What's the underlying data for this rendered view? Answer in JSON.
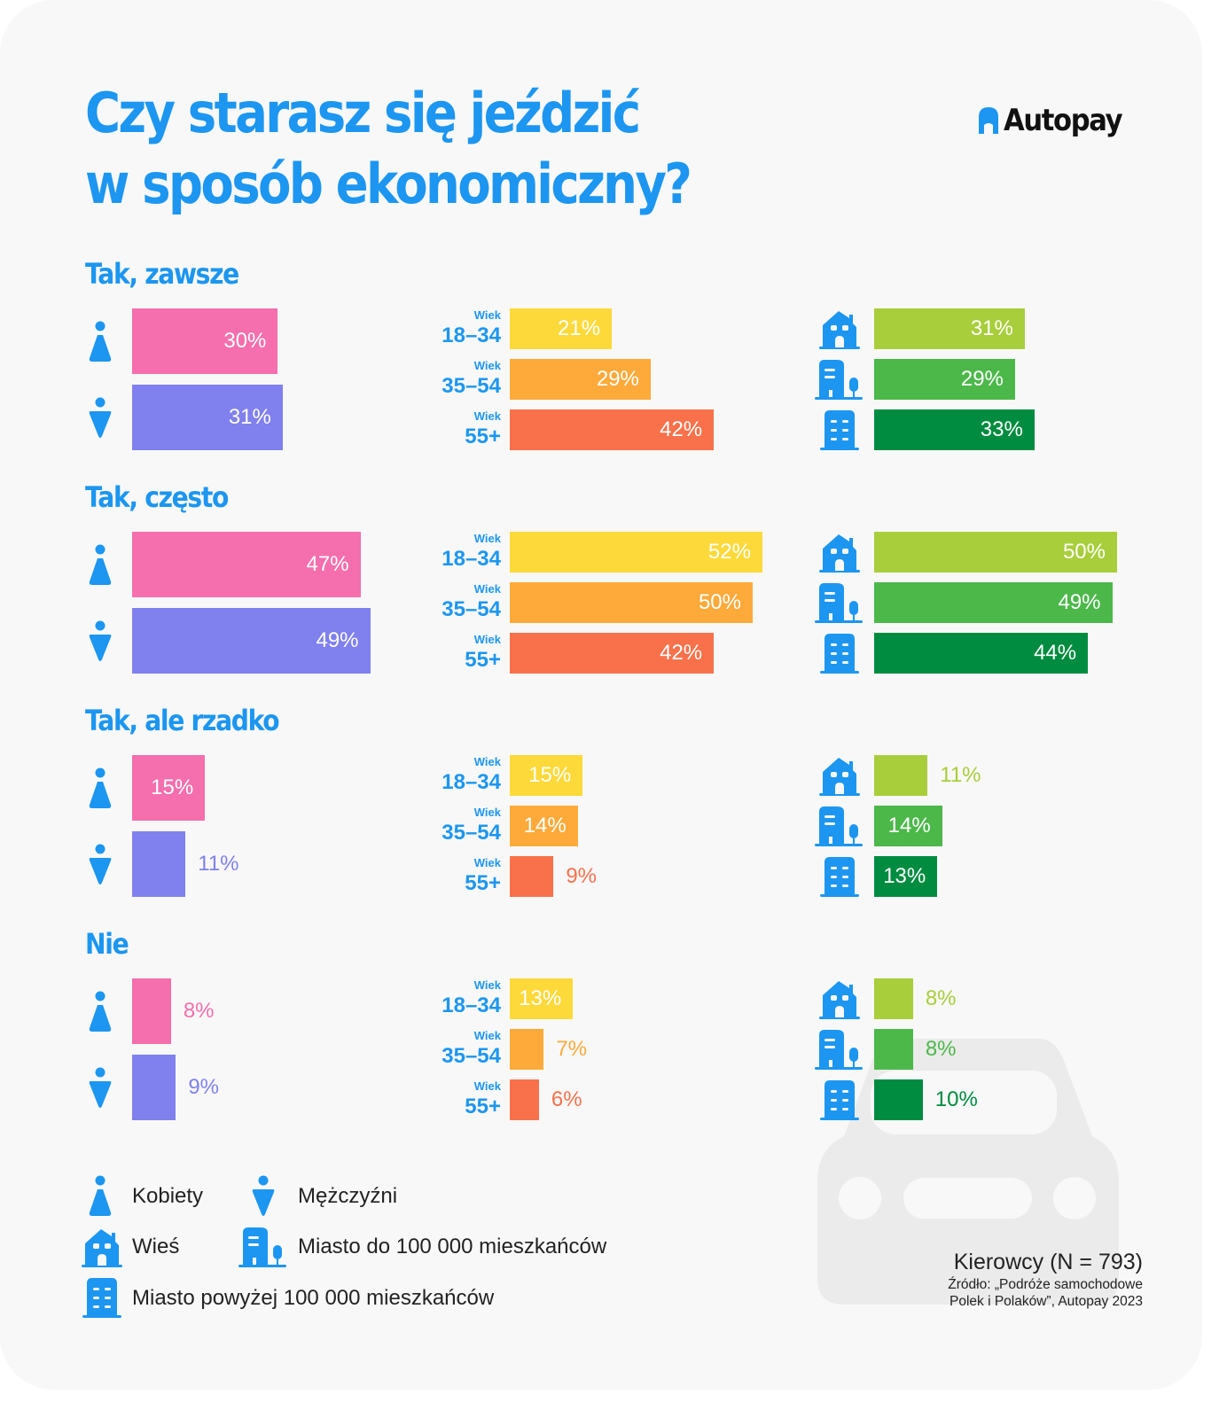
{
  "title_line1": "Czy starasz się jeździć",
  "title_line2": "w sposób ekonomiczny?",
  "logo": "Autopay",
  "age_prefix": "Wiek",
  "colors": {
    "accent": "#1c96f0",
    "women": "#f56ead",
    "men": "#8080ee",
    "age_18_34": "#fdd93a",
    "age_35_54": "#fdaa3a",
    "age_55_plus": "#f8714a",
    "village": "#a8ce3b",
    "town": "#4cb84a",
    "city": "#008c40"
  },
  "chart_data": {
    "type": "bar",
    "orientation": "horizontal",
    "unit": "%",
    "groups": [
      "Kobiety",
      "Mężczyźni"
    ],
    "age_groups": [
      "18–34",
      "35–54",
      "55+"
    ],
    "locations": [
      "Wieś",
      "Miasto do 100 000 mieszkańców",
      "Miasto powyżej 100 000 mieszkańców"
    ],
    "sections": [
      {
        "title": "Tak, zawsze",
        "gender": [
          30,
          31
        ],
        "age": [
          21,
          29,
          42
        ],
        "location": [
          31,
          29,
          33
        ]
      },
      {
        "title": "Tak, często",
        "gender": [
          47,
          49
        ],
        "age": [
          52,
          50,
          42
        ],
        "location": [
          50,
          49,
          44
        ]
      },
      {
        "title": "Tak, ale rzadko",
        "gender": [
          15,
          11
        ],
        "age": [
          15,
          14,
          9
        ],
        "location": [
          11,
          14,
          13
        ]
      },
      {
        "title": "Nie",
        "gender": [
          8,
          9
        ],
        "age": [
          13,
          7,
          6
        ],
        "location": [
          8,
          8,
          10
        ]
      }
    ]
  },
  "legend": {
    "women": "Kobiety",
    "men": "Mężczyźni",
    "village": "Wieś",
    "town": "Miasto do 100 000 mieszkańców",
    "city": "Miasto powyżej 100 000 mieszkańców"
  },
  "footer": {
    "sample": "Kierowcy (N = 793)",
    "source_line1": "Źródło: „Podróże samochodowe",
    "source_line2": "Polek i Polaków”, Autopay 2023"
  }
}
